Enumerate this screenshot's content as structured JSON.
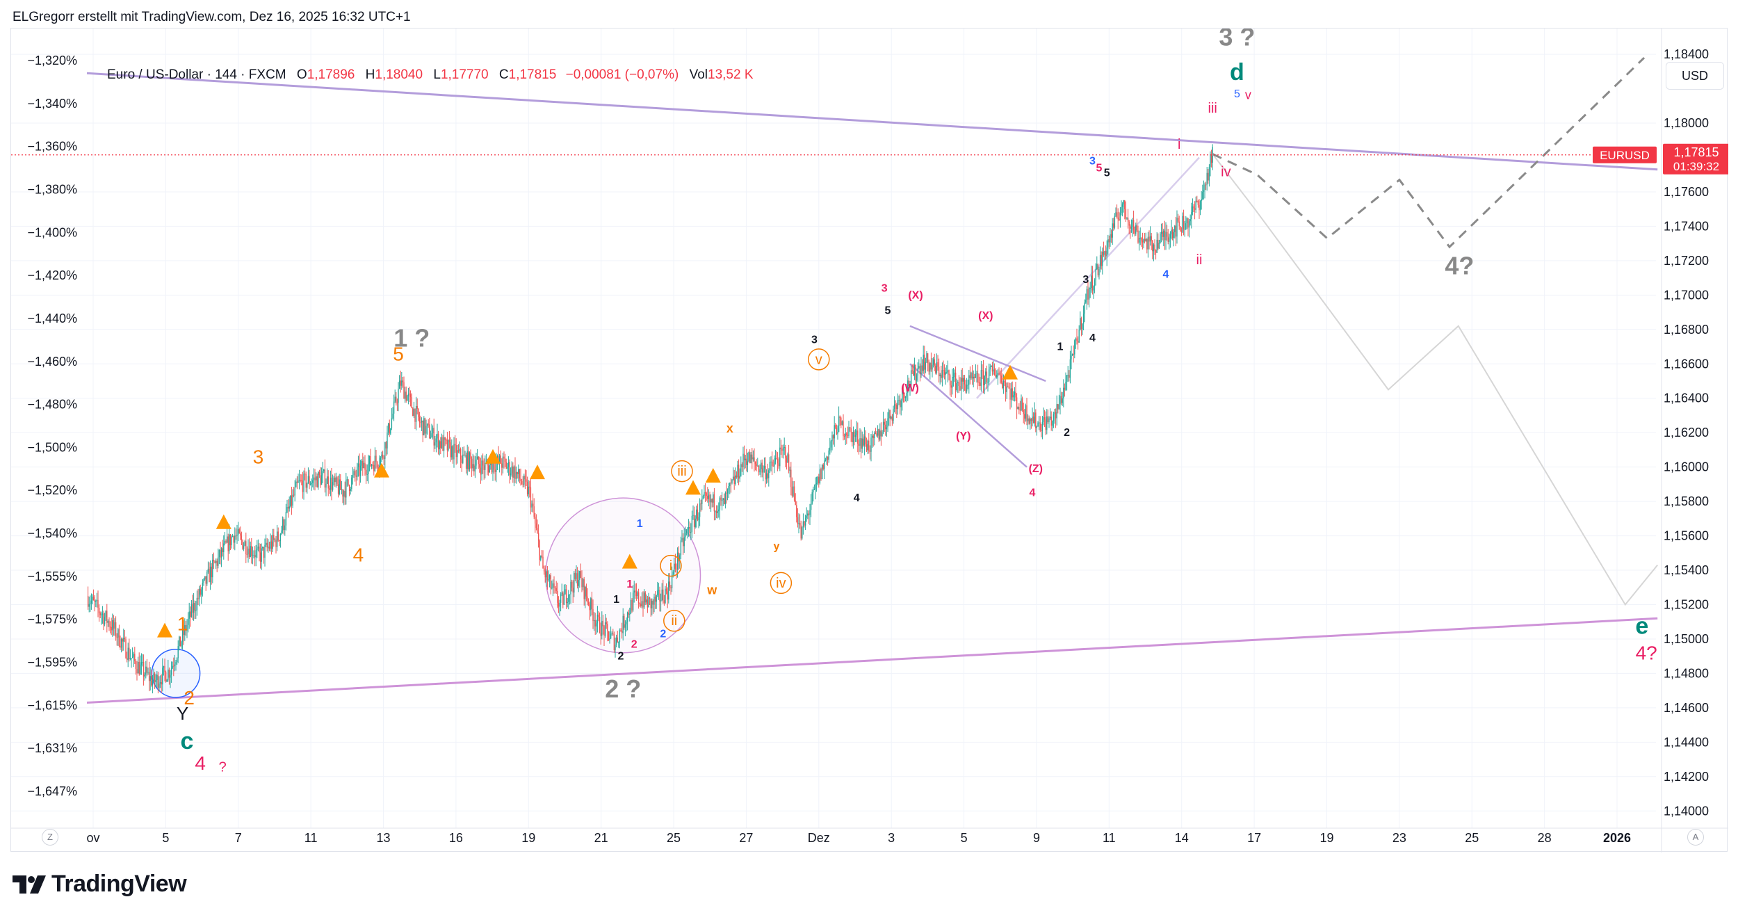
{
  "attribution": "ELGregorr erstellt mit TradingView.com, Dez 16, 2025 16:32 UTC+1",
  "legend": {
    "symbol": "Euro / US-Dollar · 144 · FXCM",
    "o_label": "O",
    "o_value": "1,17896",
    "h_label": "H",
    "h_value": "1,18040",
    "l_label": "L",
    "l_value": "1,17770",
    "c_label": "C",
    "c_value": "1,17815",
    "change": "−0,00081 (−0,07%)",
    "vol_label": "Vol",
    "vol_value": "13,52 K"
  },
  "currency": "USD",
  "logo_text": "TradingView",
  "left_axis_button": "Z",
  "right_axis_button": "A",
  "colors": {
    "up": "#26a69a",
    "down": "#ef5350",
    "channel": "#b39ddb",
    "channel_lower": "#ce93d8",
    "label_orange": "#f57c00",
    "label_pink": "#e91e63",
    "label_gray": "#888888",
    "label_teal": "#00897b",
    "label_blue": "#2962ff",
    "price_tag": "#f23645"
  },
  "chart_data": {
    "type": "candlestick",
    "y_range_right": [
      1.139,
      1.1855
    ],
    "right_ticks": [
      "1,18400",
      "1,18000",
      "1,17600",
      "1,17400",
      "1,17200",
      "1,17000",
      "1,16800",
      "1,16600",
      "1,16400",
      "1,16200",
      "1,16000",
      "1,15800",
      "1,15600",
      "1,15400",
      "1,15200",
      "1,15000",
      "1,14800",
      "1,14600",
      "1,14400",
      "1,14200",
      "1,14000"
    ],
    "left_ticks": [
      "−1,320%",
      "−1,340%",
      "−1,360%",
      "−1,380%",
      "−1,400%",
      "−1,420%",
      "−1,440%",
      "−1,460%",
      "−1,480%",
      "−1,500%",
      "−1,520%",
      "−1,540%",
      "−1,555%",
      "−1,575%",
      "−1,595%",
      "−1,615%",
      "−1,631%",
      "−1,647%"
    ],
    "x_ticks": [
      "ov",
      "5",
      "7",
      "11",
      "13",
      "16",
      "19",
      "21",
      "25",
      "27",
      "Dez",
      "3",
      "5",
      "9",
      "11",
      "14",
      "17",
      "19",
      "23",
      "25",
      "28",
      "2026"
    ],
    "last_price": {
      "symbol": "EURUSD",
      "price": "1,17815",
      "countdown": "01:39:32",
      "value": 1.17815
    },
    "price_path": [
      [
        0,
        1.1525
      ],
      [
        22,
        1.1508
      ],
      [
        42,
        1.1487
      ],
      [
        60,
        1.1475
      ],
      [
        75,
        1.1482
      ],
      [
        95,
        1.1517
      ],
      [
        112,
        1.154
      ],
      [
        132,
        1.1561
      ],
      [
        155,
        1.1548
      ],
      [
        172,
        1.1559
      ],
      [
        190,
        1.159
      ],
      [
        212,
        1.1594
      ],
      [
        230,
        1.1586
      ],
      [
        248,
        1.16
      ],
      [
        265,
        1.1605
      ],
      [
        282,
        1.1649
      ],
      [
        300,
        1.1625
      ],
      [
        318,
        1.1614
      ],
      [
        338,
        1.1605
      ],
      [
        358,
        1.16
      ],
      [
        372,
        1.1603
      ],
      [
        385,
        1.1597
      ],
      [
        398,
        1.1585
      ],
      [
        410,
        1.154
      ],
      [
        425,
        1.152
      ],
      [
        442,
        1.1537
      ],
      [
        458,
        1.151
      ],
      [
        475,
        1.1498
      ],
      [
        492,
        1.1524
      ],
      [
        508,
        1.152
      ],
      [
        522,
        1.1528
      ],
      [
        538,
        1.156
      ],
      [
        555,
        1.158
      ],
      [
        572,
        1.1578
      ],
      [
        592,
        1.1606
      ],
      [
        612,
        1.1597
      ],
      [
        628,
        1.161
      ],
      [
        642,
        1.156
      ],
      [
        658,
        1.1593
      ],
      [
        675,
        1.1625
      ],
      [
        690,
        1.1618
      ],
      [
        705,
        1.1612
      ],
      [
        720,
        1.1628
      ],
      [
        740,
        1.165
      ],
      [
        752,
        1.1662
      ],
      [
        768,
        1.1655
      ],
      [
        785,
        1.1648
      ],
      [
        800,
        1.165
      ],
      [
        818,
        1.1656
      ],
      [
        838,
        1.1636
      ],
      [
        855,
        1.1625
      ],
      [
        870,
        1.1628
      ],
      [
        885,
        1.166
      ],
      [
        900,
        1.1702
      ],
      [
        915,
        1.1725
      ],
      [
        930,
        1.1752
      ],
      [
        945,
        1.1735
      ],
      [
        958,
        1.1728
      ],
      [
        975,
        1.1738
      ],
      [
        990,
        1.1743
      ],
      [
        1003,
        1.1758
      ],
      [
        1012,
        1.1782
      ]
    ],
    "projection_path_dashed": [
      [
        1012,
        1.1782
      ],
      [
        1052,
        1.177
      ],
      [
        1115,
        1.1733
      ],
      [
        1180,
        1.1767
      ],
      [
        1225,
        1.1728
      ],
      [
        1400,
        1.1838
      ]
    ],
    "projection_path_alt": [
      [
        1012,
        1.1782
      ],
      [
        1050,
        1.175
      ],
      [
        1170,
        1.1645
      ],
      [
        1233,
        1.1682
      ],
      [
        1383,
        1.152
      ],
      [
        1412,
        1.1543
      ]
    ],
    "trendlines": [
      {
        "from": [
          0,
          1.1829
        ],
        "to": [
          1412,
          1.1773
        ]
      },
      {
        "from": [
          0,
          1.1463
        ],
        "to": [
          1412,
          1.1512
        ]
      },
      {
        "from": [
          740,
          1.1682
        ],
        "to": [
          862,
          1.165
        ]
      },
      {
        "from": [
          740,
          1.166
        ],
        "to": [
          845,
          1.16
        ]
      },
      {
        "from": [
          800,
          1.164
        ],
        "to": [
          1000,
          1.178
        ]
      }
    ],
    "circles": [
      {
        "center": [
          80,
          1.148
        ],
        "r": 0.0014,
        "color": "#2962ff"
      },
      {
        "center": [
          482,
          1.1537
        ],
        "r": 0.0045,
        "color": "#ce93d8"
      }
    ],
    "triangles": [
      [
        70,
        1.1505
      ],
      [
        123,
        1.1568
      ],
      [
        265,
        1.1598
      ],
      [
        365,
        1.1606
      ],
      [
        405,
        1.1597
      ],
      [
        488,
        1.1545
      ],
      [
        545,
        1.1588
      ],
      [
        563,
        1.1595
      ],
      [
        830,
        1.1655
      ]
    ],
    "wave_labels": [
      {
        "text": "3 ?",
        "pos": [
          1034,
          1.1845
        ],
        "color": "#888888",
        "size": 36,
        "bold": true
      },
      {
        "text": "d",
        "pos": [
          1034,
          1.1825
        ],
        "color": "#00897b",
        "size": 34,
        "bold": true
      },
      {
        "text": "5",
        "pos": [
          1034,
          1.1815
        ],
        "color": "#2962ff",
        "size": 16,
        "bold": false
      },
      {
        "text": "v",
        "pos": [
          1044,
          1.1814
        ],
        "color": "#e91e63",
        "size": 18,
        "bold": false
      },
      {
        "text": "iii",
        "pos": [
          1012,
          1.1806
        ],
        "color": "#e91e63",
        "size": 20,
        "bold": false
      },
      {
        "text": "i",
        "pos": [
          982,
          1.1785
        ],
        "color": "#e91e63",
        "size": 20,
        "bold": false
      },
      {
        "text": "iv",
        "pos": [
          1024,
          1.1769
        ],
        "color": "#e91e63",
        "size": 20,
        "bold": false
      },
      {
        "text": "ii",
        "pos": [
          1000,
          1.1718
        ],
        "color": "#e91e63",
        "size": 20,
        "bold": false
      },
      {
        "text": "3",
        "pos": [
          904,
          1.1776
        ],
        "color": "#2962ff",
        "size": 16,
        "bold": true
      },
      {
        "text": "5",
        "pos": [
          910,
          1.1772
        ],
        "color": "#e91e63",
        "size": 16,
        "bold": true
      },
      {
        "text": "5",
        "pos": [
          917,
          1.1769
        ],
        "color": "#131722",
        "size": 16,
        "bold": true
      },
      {
        "text": "4",
        "pos": [
          970,
          1.171
        ],
        "color": "#2962ff",
        "size": 16,
        "bold": true
      },
      {
        "text": "3",
        "pos": [
          898,
          1.1707
        ],
        "color": "#131722",
        "size": 16,
        "bold": true
      },
      {
        "text": "4",
        "pos": [
          904,
          1.1673
        ],
        "color": "#131722",
        "size": 16,
        "bold": true
      },
      {
        "text": "1",
        "pos": [
          875,
          1.1668
        ],
        "color": "#131722",
        "size": 16,
        "bold": true
      },
      {
        "text": "2",
        "pos": [
          881,
          1.1618
        ],
        "color": "#131722",
        "size": 16,
        "bold": true
      },
      {
        "text": "3",
        "pos": [
          717,
          1.1702
        ],
        "color": "#e91e63",
        "size": 16,
        "bold": true
      },
      {
        "text": "5",
        "pos": [
          720,
          1.1689
        ],
        "color": "#131722",
        "size": 16,
        "bold": true
      },
      {
        "text": "(X)",
        "pos": [
          745,
          1.1698
        ],
        "color": "#e91e63",
        "size": 16,
        "bold": true
      },
      {
        "text": "(X)",
        "pos": [
          808,
          1.1686
        ],
        "color": "#e91e63",
        "size": 16,
        "bold": true
      },
      {
        "text": "(W)",
        "pos": [
          740,
          1.1644
        ],
        "color": "#e91e63",
        "size": 16,
        "bold": true
      },
      {
        "text": "(Y)",
        "pos": [
          788,
          1.1616
        ],
        "color": "#e91e63",
        "size": 16,
        "bold": true
      },
      {
        "text": "(Z)",
        "pos": [
          853,
          1.1597
        ],
        "color": "#e91e63",
        "size": 16,
        "bold": true
      },
      {
        "text": "4",
        "pos": [
          850,
          1.1583
        ],
        "color": "#e91e63",
        "size": 16,
        "bold": true
      },
      {
        "text": "3",
        "pos": [
          654,
          1.1672
        ],
        "color": "#131722",
        "size": 16,
        "bold": true
      },
      {
        "text": "v",
        "pos": [
          658,
          1.166
        ],
        "color": "#f57c00",
        "size": 20,
        "bold": false,
        "circled": true
      },
      {
        "text": "x",
        "pos": [
          578,
          1.162
        ],
        "color": "#f57c00",
        "size": 18,
        "bold": true
      },
      {
        "text": "y",
        "pos": [
          620,
          1.1552
        ],
        "color": "#f57c00",
        "size": 16,
        "bold": true
      },
      {
        "text": "iv",
        "pos": [
          624,
          1.153
        ],
        "color": "#f57c00",
        "size": 20,
        "bold": false,
        "circled": true
      },
      {
        "text": "4",
        "pos": [
          692,
          1.158
        ],
        "color": "#131722",
        "size": 16,
        "bold": true
      },
      {
        "text": "iii",
        "pos": [
          535,
          1.1595
        ],
        "color": "#f57c00",
        "size": 20,
        "bold": false,
        "circled": true
      },
      {
        "text": "i",
        "pos": [
          525,
          1.154
        ],
        "color": "#f57c00",
        "size": 20,
        "bold": false,
        "circled": true
      },
      {
        "text": "ii",
        "pos": [
          528,
          1.1508
        ],
        "color": "#f57c00",
        "size": 20,
        "bold": false,
        "circled": true
      },
      {
        "text": "w",
        "pos": [
          562,
          1.1526
        ],
        "color": "#f57c00",
        "size": 18,
        "bold": true
      },
      {
        "text": "1",
        "pos": [
          497,
          1.1565
        ],
        "color": "#2962ff",
        "size": 16,
        "bold": true
      },
      {
        "text": "2",
        "pos": [
          518,
          1.1501
        ],
        "color": "#2962ff",
        "size": 16,
        "bold": true
      },
      {
        "text": "1",
        "pos": [
          476,
          1.1521
        ],
        "color": "#131722",
        "size": 16,
        "bold": true
      },
      {
        "text": "1",
        "pos": [
          488,
          1.153
        ],
        "color": "#e91e63",
        "size": 16,
        "bold": true
      },
      {
        "text": "2",
        "pos": [
          492,
          1.1495
        ],
        "color": "#e91e63",
        "size": 16,
        "bold": true
      },
      {
        "text": "2",
        "pos": [
          480,
          1.1488
        ],
        "color": "#131722",
        "size": 16,
        "bold": true
      },
      {
        "text": "2 ?",
        "pos": [
          482,
          1.1466
        ],
        "color": "#888888",
        "size": 36,
        "bold": true
      },
      {
        "text": "1 ?",
        "pos": [
          292,
          1.167
        ],
        "color": "#888888",
        "size": 36,
        "bold": true
      },
      {
        "text": "5",
        "pos": [
          280,
          1.1662
        ],
        "color": "#f57c00",
        "size": 28,
        "bold": false
      },
      {
        "text": "3",
        "pos": [
          154,
          1.1602
        ],
        "color": "#f57c00",
        "size": 28,
        "bold": false
      },
      {
        "text": "4",
        "pos": [
          244,
          1.1545
        ],
        "color": "#f57c00",
        "size": 28,
        "bold": false
      },
      {
        "text": "1",
        "pos": [
          86,
          1.1505
        ],
        "color": "#f57c00",
        "size": 28,
        "bold": false
      },
      {
        "text": "2",
        "pos": [
          92,
          1.1462
        ],
        "color": "#f57c00",
        "size": 28,
        "bold": false
      },
      {
        "text": "Y",
        "pos": [
          86,
          1.1453
        ],
        "color": "#131722",
        "size": 26,
        "bold": false
      },
      {
        "text": "c",
        "pos": [
          90,
          1.1436
        ],
        "color": "#00897b",
        "size": 34,
        "bold": true
      },
      {
        "text": "4",
        "pos": [
          102,
          1.1424
        ],
        "color": "#e91e63",
        "size": 28,
        "bold": false
      },
      {
        "text": "?",
        "pos": [
          122,
          1.1423
        ],
        "color": "#e91e63",
        "size": 20,
        "bold": false
      },
      {
        "text": "4?",
        "pos": [
          1234,
          1.1712
        ],
        "color": "#888888",
        "size": 36,
        "bold": true
      },
      {
        "text": "e",
        "pos": [
          1398,
          1.1503
        ],
        "color": "#00897b",
        "size": 34,
        "bold": true
      },
      {
        "text": "4?",
        "pos": [
          1402,
          1.1488
        ],
        "color": "#e91e63",
        "size": 28,
        "bold": false
      }
    ]
  }
}
